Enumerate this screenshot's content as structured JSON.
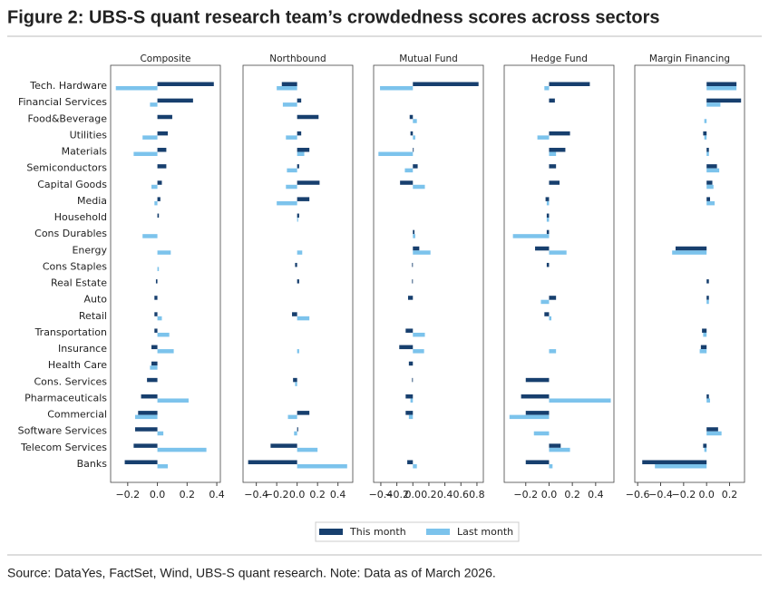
{
  "title": "Figure 2: UBS-S quant research team’s crowdedness scores across sectors",
  "source": "Source: DataYes, FactSet, Wind, UBS-S quant research. Note: Data as of March 2026.",
  "chart_data": [
    {
      "type": "bar",
      "orientation": "horizontal",
      "title": "Composite",
      "categories": [
        "Tech. Hardware",
        "Financial Services",
        "Food&Beverage",
        "Utilities",
        "Materials",
        "Semiconductors",
        "Capital Goods",
        "Media",
        "Household",
        "Cons Durables",
        "Energy",
        "Cons Staples",
        "Real Estate",
        "Auto",
        "Retail",
        "Transportation",
        "Insurance",
        "Health Care",
        "Cons. Services",
        "Pharmaceuticals",
        "Commercial",
        "Software Services",
        "Telecom Services",
        "Banks"
      ],
      "xlim": [
        -0.315,
        0.424
      ],
      "xticks": [
        {
          "value": -0.2,
          "label": "−0.2"
        },
        {
          "value": 0,
          "label": "0.0"
        },
        0.2,
        0.4
      ],
      "series": [
        {
          "name": "This month",
          "color": "#173f6e",
          "values": [
            0.38,
            0.24,
            0.1,
            0.07,
            0.06,
            0.06,
            0.03,
            0.02,
            0.01,
            0,
            0,
            0,
            -0.01,
            -0.02,
            -0.02,
            -0.02,
            -0.04,
            -0.04,
            -0.07,
            -0.11,
            -0.13,
            -0.15,
            -0.16,
            -0.22
          ]
        },
        {
          "name": "Last month",
          "color": "#7cc3ec",
          "values": [
            -0.28,
            -0.05,
            0,
            -0.1,
            -0.16,
            0,
            -0.04,
            -0.02,
            0,
            -0.1,
            0.09,
            0.01,
            0,
            0,
            0.03,
            0.08,
            0.11,
            -0.05,
            0,
            0.21,
            -0.15,
            0.04,
            0.33,
            0.07
          ]
        }
      ]
    },
    {
      "type": "bar",
      "orientation": "horizontal",
      "title": "Northbound",
      "xlim": [
        -0.53,
        0.545
      ],
      "xticks": [
        {
          "value": -0.4,
          "label": "−0.4"
        },
        {
          "value": -0.2,
          "label": "−0.2"
        },
        {
          "value": 0,
          "label": "0.0"
        },
        0.2,
        0.4
      ],
      "series": [
        {
          "color": "#173f6e",
          "values": [
            -0.15,
            0.04,
            0.21,
            0.04,
            0.12,
            0.02,
            0.22,
            0.12,
            0.02,
            0,
            0,
            -0.02,
            0.02,
            0,
            -0.05,
            0,
            0,
            0,
            -0.04,
            0,
            0.12,
            0.01,
            -0.26,
            -0.48
          ]
        },
        {
          "color": "#7cc3ec",
          "values": [
            -0.2,
            -0.14,
            0,
            -0.11,
            0.07,
            -0.1,
            -0.11,
            -0.2,
            0.01,
            0,
            0.05,
            0,
            0,
            0,
            0.12,
            0,
            0.02,
            0,
            -0.02,
            0,
            -0.09,
            -0.03,
            0.2,
            0.49
          ]
        }
      ]
    },
    {
      "type": "bar",
      "orientation": "horizontal",
      "title": "Mutual Fund",
      "xlim": [
        -0.49,
        0.88
      ],
      "xticks": [
        {
          "value": -0.4,
          "label": "−0.4"
        },
        {
          "value": -0.2,
          "label": "−0.2"
        },
        {
          "value": 0,
          "label": "0.0"
        },
        0.2,
        0.4,
        0.6,
        0.8
      ],
      "series": [
        {
          "color": "#173f6e",
          "values": [
            0.82,
            0,
            -0.04,
            -0.03,
            0.01,
            0.06,
            -0.16,
            0,
            0,
            0.02,
            0.08,
            -0.01,
            -0.01,
            -0.06,
            0,
            -0.09,
            -0.17,
            -0.05,
            -0.01,
            -0.09,
            -0.09,
            0,
            0,
            -0.07
          ]
        },
        {
          "color": "#7cc3ec",
          "values": [
            -0.41,
            0,
            0.05,
            0.03,
            -0.43,
            -0.1,
            0.15,
            0,
            0,
            0.03,
            0.22,
            0,
            0,
            0,
            0,
            0.15,
            0.14,
            0,
            0,
            -0.03,
            -0.05,
            0,
            0,
            0.05
          ]
        }
      ]
    },
    {
      "type": "bar",
      "orientation": "horizontal",
      "title": "Hedge Fund",
      "xlim": [
        -0.385,
        0.557
      ],
      "xticks": [
        {
          "value": -0.2,
          "label": "−0.2"
        },
        {
          "value": 0,
          "label": "0.0"
        },
        0.2,
        0.4
      ],
      "series": [
        {
          "color": "#173f6e",
          "values": [
            0.35,
            0.05,
            0,
            0.18,
            0.14,
            0.06,
            0.09,
            -0.03,
            -0.02,
            -0.02,
            -0.12,
            -0.02,
            0,
            0.06,
            -0.04,
            0,
            0,
            0,
            -0.2,
            -0.24,
            -0.2,
            0,
            0.1,
            -0.2
          ]
        },
        {
          "color": "#7cc3ec",
          "values": [
            -0.04,
            0,
            0,
            -0.1,
            0.06,
            0,
            0,
            -0.02,
            -0.02,
            -0.31,
            0.15,
            0,
            0,
            -0.07,
            0.02,
            0,
            0.06,
            0,
            0,
            0.53,
            -0.34,
            -0.13,
            0.18,
            0.03
          ]
        }
      ]
    },
    {
      "type": "bar",
      "orientation": "horizontal",
      "title": "Margin Financing",
      "xlim": [
        -0.625,
        0.33
      ],
      "xticks": [
        {
          "value": -0.6,
          "label": "−0.6"
        },
        {
          "value": -0.4,
          "label": "−0.4"
        },
        {
          "value": -0.2,
          "label": "−0.2"
        },
        {
          "value": 0,
          "label": "0.0"
        },
        0.2
      ],
      "series": [
        {
          "color": "#173f6e",
          "values": [
            0.26,
            0.3,
            0,
            -0.03,
            0.02,
            0.09,
            0.05,
            0.03,
            0,
            0,
            -0.27,
            0,
            0.02,
            0.02,
            0,
            -0.04,
            -0.05,
            0,
            0,
            0.02,
            0,
            0.1,
            -0.03,
            -0.56
          ]
        },
        {
          "color": "#7cc3ec",
          "values": [
            0.26,
            0.12,
            -0.02,
            -0.02,
            0.02,
            0.11,
            0.06,
            0.07,
            0,
            0,
            -0.3,
            0,
            0,
            0.02,
            0,
            -0.03,
            -0.06,
            0,
            0,
            0.03,
            0,
            0.13,
            -0.02,
            -0.45
          ]
        }
      ]
    }
  ]
}
